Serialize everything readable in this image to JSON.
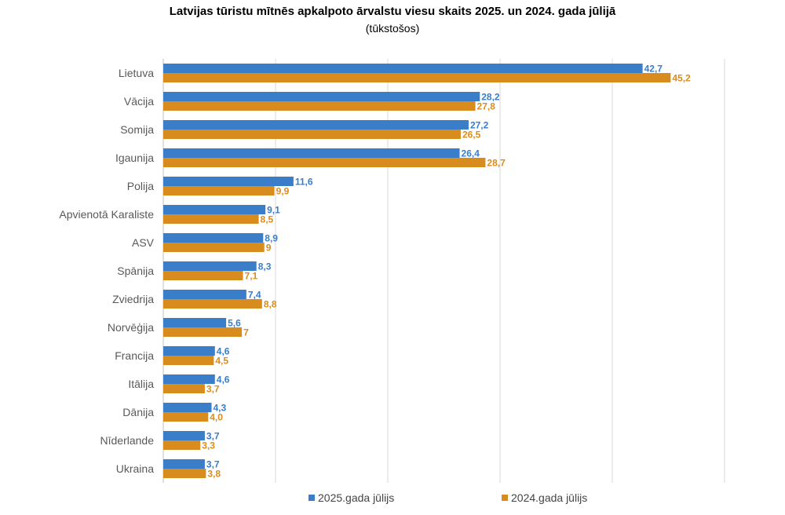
{
  "chart_data": {
    "type": "bar",
    "orientation": "horizontal",
    "title": "Latvijas tūristu mītnēs apkalpoto ārvalstu viesu skaits 2025. un 2024. gada jūlijā",
    "subtitle": "(tūkstošos)",
    "categories": [
      "Lietuva",
      "Vācija",
      "Somija",
      "Igaunija",
      "Polija",
      "Apvienotā Karaliste",
      "ASV",
      "Spānija",
      "Zviedrija",
      "Norvēģija",
      "Francija",
      "Itālija",
      "Dānija",
      "Nīderlande",
      "Ukraina"
    ],
    "series": [
      {
        "name": "2025.gada jūlijs",
        "color": "#3a7dc9",
        "values": [
          42.7,
          28.2,
          27.2,
          26.4,
          11.6,
          9.1,
          8.9,
          8.3,
          7.4,
          5.6,
          4.6,
          4.6,
          4.3,
          3.7,
          3.7
        ],
        "labels": [
          "42,7",
          "28,2",
          "27,2",
          "26,4",
          "11,6",
          "9,1",
          "8,9",
          "8,3",
          "7,4",
          "5,6",
          "4,6",
          "4,6",
          "4,3",
          "3,7",
          "3,7"
        ]
      },
      {
        "name": "2024.gada jūlijs",
        "color": "#d98c1e",
        "values": [
          45.2,
          27.8,
          26.5,
          28.7,
          9.9,
          8.5,
          9.0,
          7.1,
          8.8,
          7.0,
          4.5,
          3.7,
          4.0,
          3.3,
          3.8
        ],
        "labels": [
          "45,2",
          "27,8",
          "26,5",
          "28,7",
          "9,9",
          "8,5",
          "9",
          "7,1",
          "8,8",
          "7",
          "4,5",
          "3,7",
          "4,0",
          "3,3",
          "3,8"
        ]
      }
    ],
    "xlim": [
      0,
      50
    ],
    "grid": true,
    "legend_position": "bottom"
  }
}
